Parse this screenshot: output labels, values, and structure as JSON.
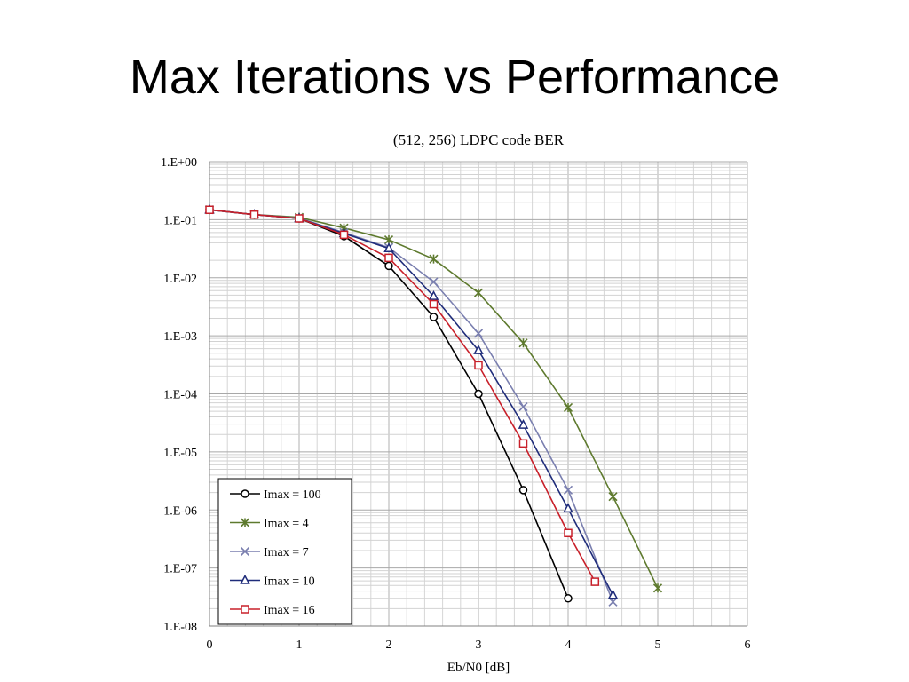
{
  "slide": {
    "title": "Max Iterations vs Performance"
  },
  "chart_data": {
    "type": "line",
    "title": "(512, 256) LDPC code BER",
    "xlabel": "Eb/N0 [dB]",
    "ylabel": "",
    "xlim": [
      0,
      6
    ],
    "ylim": [
      1e-08,
      1
    ],
    "yscale": "log",
    "grid": true,
    "legend_position": "bottom-left",
    "x_ticks": [
      "0",
      "1",
      "2",
      "3",
      "4",
      "5",
      "6"
    ],
    "y_ticks": [
      "1.E+00",
      "1.E-01",
      "1.E-02",
      "1.E-03",
      "1.E-04",
      "1.E-05",
      "1.E-06",
      "1.E-07",
      "1.E-08"
    ],
    "series": [
      {
        "name": "Imax = 100",
        "color": "#000000",
        "marker": "circle",
        "x": [
          0,
          0.5,
          1,
          1.5,
          2,
          2.5,
          3,
          3.5,
          4
        ],
        "y": [
          0.148,
          0.122,
          0.105,
          0.052,
          0.016,
          0.0021,
          0.0001,
          2.2e-06,
          3e-08
        ]
      },
      {
        "name": "Imax = 4",
        "color": "#5e7a2e",
        "marker": "star",
        "x": [
          0,
          0.5,
          1,
          1.5,
          2,
          2.5,
          3,
          3.5,
          4,
          4.5,
          5
        ],
        "y": [
          0.148,
          0.122,
          0.11,
          0.072,
          0.045,
          0.021,
          0.0055,
          0.00075,
          5.8e-05,
          1.7e-06,
          4.5e-08
        ]
      },
      {
        "name": "Imax = 7",
        "color": "#7a7faf",
        "marker": "x",
        "x": [
          0,
          0.5,
          1,
          1.5,
          2,
          2.5,
          3,
          3.5,
          4,
          4.5
        ],
        "y": [
          0.148,
          0.122,
          0.106,
          0.06,
          0.033,
          0.0085,
          0.0011,
          6e-05,
          2.2e-06,
          2.6e-08
        ]
      },
      {
        "name": "Imax = 10",
        "color": "#1f2c7a",
        "marker": "triangle",
        "x": [
          0,
          0.5,
          1,
          1.5,
          2,
          2.5,
          3,
          3.5,
          4,
          4.5
        ],
        "y": [
          0.148,
          0.122,
          0.105,
          0.058,
          0.032,
          0.0048,
          0.00056,
          2.9e-05,
          1.05e-06,
          3.4e-08
        ]
      },
      {
        "name": "Imax = 16",
        "color": "#c8202a",
        "marker": "square",
        "x": [
          0,
          0.5,
          1,
          1.5,
          2,
          2.5,
          3,
          3.5,
          4,
          4.3
        ],
        "y": [
          0.148,
          0.122,
          0.105,
          0.055,
          0.022,
          0.0035,
          0.00031,
          1.4e-05,
          4e-07,
          5.8e-08
        ]
      }
    ]
  }
}
